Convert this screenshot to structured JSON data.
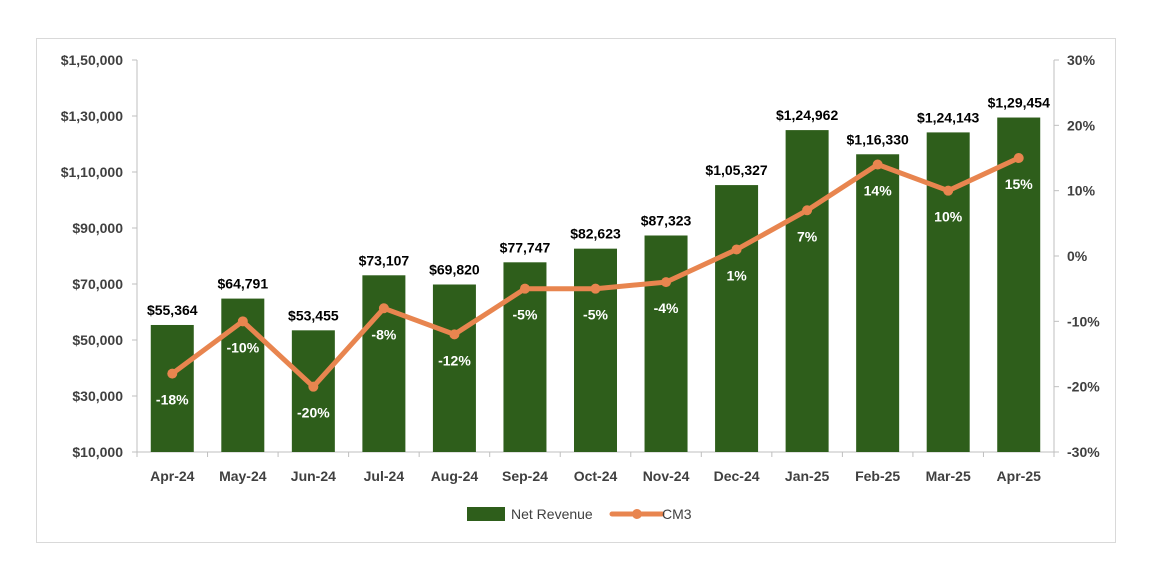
{
  "chart_data": {
    "type": "bar",
    "categories": [
      "Apr-24",
      "May-24",
      "Jun-24",
      "Jul-24",
      "Aug-24",
      "Sep-24",
      "Oct-24",
      "Nov-24",
      "Dec-24",
      "Jan-25",
      "Feb-25",
      "Mar-25",
      "Apr-25"
    ],
    "series": [
      {
        "name": "Net Revenue",
        "type": "bar",
        "axis": "left",
        "values": [
          55364,
          64791,
          53455,
          73107,
          69820,
          77747,
          82623,
          87323,
          105327,
          124962,
          116330,
          124143,
          129454
        ],
        "labels": [
          "$55,364",
          "$64,791",
          "$53,455",
          "$73,107",
          "$69,820",
          "$77,747",
          "$82,623",
          "$87,323",
          "$1,05,327",
          "$1,24,962",
          "$1,16,330",
          "$1,24,143",
          "$1,29,454"
        ]
      },
      {
        "name": "CM3",
        "type": "line",
        "axis": "right",
        "values": [
          -18,
          -10,
          -20,
          -8,
          -12,
          -5,
          -5,
          -4,
          1,
          7,
          14,
          10,
          15
        ],
        "labels": [
          "-18%",
          "-10%",
          "-20%",
          "-8%",
          "-12%",
          "-5%",
          "-5%",
          "-4%",
          "1%",
          "7%",
          "14%",
          "10%",
          "15%"
        ]
      }
    ],
    "y_left": {
      "ylim": [
        10000,
        150000
      ],
      "tick_values": [
        10000,
        30000,
        50000,
        70000,
        90000,
        110000,
        130000,
        150000
      ],
      "tick_labels": [
        "$10,000",
        "$30,000",
        "$50,000",
        "$70,000",
        "$90,000",
        "$1,10,000",
        "$1,30,000",
        "$1,50,000"
      ]
    },
    "y_right": {
      "ylim": [
        -30,
        30
      ],
      "tick_values": [
        -30,
        -20,
        -10,
        0,
        10,
        20,
        30
      ],
      "tick_labels": [
        "-30%",
        "-20%",
        "-10%",
        "0%",
        "10%",
        "20%",
        "30%"
      ]
    },
    "grid": false,
    "legend_position": "bottom",
    "colors": {
      "bar": "#2e5e1b",
      "line": "#e8854f",
      "text": "#404040",
      "label": "#000000",
      "inner_label": "#ffffff"
    }
  }
}
